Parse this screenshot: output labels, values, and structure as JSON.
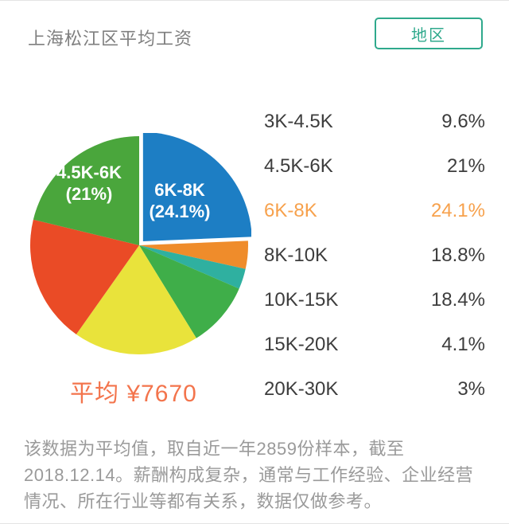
{
  "header": {
    "title": "上海松江区平均工资",
    "region_button": "地区"
  },
  "chart_data": {
    "type": "pie",
    "title": "上海松江区平均工资",
    "unit": "%",
    "start_angle_deg": 0,
    "direction": "clockwise",
    "slices": [
      {
        "label": "6K-8K",
        "value": 24.1,
        "color": "#1d7ec4",
        "exploded": true
      },
      {
        "label": "15K-20K",
        "value": 4.1,
        "color": "#ef8c2b",
        "exploded": false
      },
      {
        "label": "20K-30K",
        "value": 3,
        "color": "#2fb0a0",
        "exploded": false
      },
      {
        "label": "3K-4.5K",
        "value": 9.6,
        "color": "#3fae49",
        "exploded": false
      },
      {
        "label": "10K-15K",
        "value": 18.4,
        "color": "#e9e33b",
        "exploded": false
      },
      {
        "label": "8K-10K",
        "value": 18.8,
        "color": "#ea4b26",
        "exploded": false
      },
      {
        "label": "4.5K-6K",
        "value": 21,
        "color": "#4aa63c",
        "exploded": false
      }
    ],
    "labels_on_chart": [
      {
        "line1": "4.5K-6K",
        "line2": "(21%)"
      },
      {
        "line1": "6K-8K",
        "line2": "(24.1%)"
      }
    ],
    "average_label": "平均 ¥7670"
  },
  "salary_table": {
    "rows": [
      {
        "label": "3K-4.5K",
        "value": "9.6%",
        "highlighted": false
      },
      {
        "label": "4.5K-6K",
        "value": "21%",
        "highlighted": false
      },
      {
        "label": "6K-8K",
        "value": "24.1%",
        "highlighted": true
      },
      {
        "label": "8K-10K",
        "value": "18.8%",
        "highlighted": false
      },
      {
        "label": "10K-15K",
        "value": "18.4%",
        "highlighted": false
      },
      {
        "label": "15K-20K",
        "value": "4.1%",
        "highlighted": false
      },
      {
        "label": "20K-30K",
        "value": "3%",
        "highlighted": false
      }
    ]
  },
  "footer": {
    "note": "该数据为平均值，取自近一年2859份样本，截至2018.12.14。薪酬构成复杂，通常与工作经验、企业经营情况、所在行业等都有关系，数据仅做参考。"
  },
  "colors": {
    "accent_teal": "#2fa98c",
    "highlight_orange": "#f7a14c",
    "average_orange": "#f3744c",
    "title_gray": "#7f7f7f",
    "note_gray": "#9a9a9a"
  }
}
